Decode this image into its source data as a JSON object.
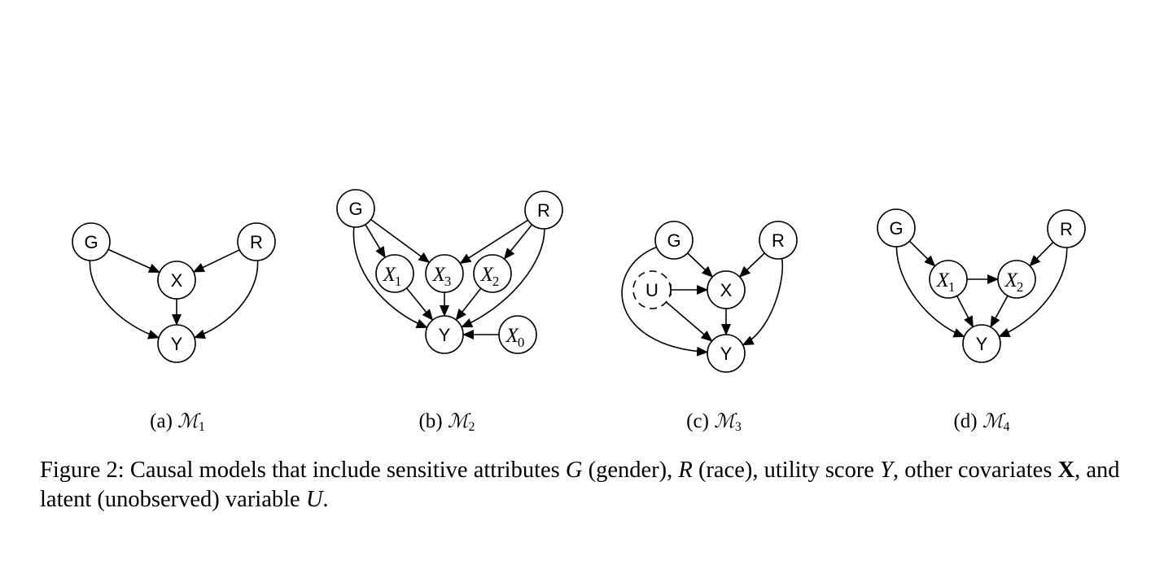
{
  "panels": [
    {
      "caption_prefix": "(a) ",
      "model_symbol": "ℳ",
      "model_index": "1",
      "nodes": [
        {
          "id": "G",
          "label": "G",
          "style": "solid",
          "font": "sans"
        },
        {
          "id": "R",
          "label": "R",
          "style": "solid",
          "font": "sans"
        },
        {
          "id": "X",
          "label": "X",
          "style": "solid",
          "font": "sans"
        },
        {
          "id": "Y",
          "label": "Y",
          "style": "solid",
          "font": "sans"
        }
      ],
      "edges": [
        {
          "from": "G",
          "to": "X",
          "head": "arrow"
        },
        {
          "from": "R",
          "to": "X",
          "head": "arrow"
        },
        {
          "from": "X",
          "to": "Y",
          "head": "arrow"
        },
        {
          "from": "G",
          "to": "Y",
          "head": "arrow"
        },
        {
          "from": "R",
          "to": "Y",
          "head": "arrow"
        }
      ]
    },
    {
      "caption_prefix": "(b) ",
      "model_symbol": "ℳ",
      "model_index": "2",
      "nodes": [
        {
          "id": "G",
          "label": "G",
          "style": "solid",
          "font": "sans"
        },
        {
          "id": "R",
          "label": "R",
          "style": "solid",
          "font": "sans"
        },
        {
          "id": "X1",
          "label": "X",
          "sub": "1",
          "style": "solid",
          "font": "math"
        },
        {
          "id": "X3",
          "label": "X",
          "sub": "3",
          "style": "solid",
          "font": "math"
        },
        {
          "id": "X2",
          "label": "X",
          "sub": "2",
          "style": "solid",
          "font": "math"
        },
        {
          "id": "Y",
          "label": "Y",
          "style": "solid",
          "font": "sans"
        },
        {
          "id": "X0",
          "label": "X",
          "sub": "0",
          "style": "solid",
          "font": "math"
        }
      ],
      "edges": [
        {
          "from": "G",
          "to": "X1",
          "head": "arrow"
        },
        {
          "from": "G",
          "to": "X3",
          "head": "arrow"
        },
        {
          "from": "R",
          "to": "X3",
          "head": "arrow"
        },
        {
          "from": "R",
          "to": "X2",
          "head": "arrow"
        },
        {
          "from": "X1",
          "to": "Y",
          "head": "arrow"
        },
        {
          "from": "X3",
          "to": "Y",
          "head": "arrow"
        },
        {
          "from": "X2",
          "to": "Y",
          "head": "arrow"
        },
        {
          "from": "G",
          "to": "Y",
          "head": "arrow"
        },
        {
          "from": "R",
          "to": "Y",
          "head": "arrow"
        },
        {
          "from": "X0",
          "to": "Y",
          "head": "arrow"
        }
      ]
    },
    {
      "caption_prefix": "(c) ",
      "model_symbol": "ℳ",
      "model_index": "3",
      "nodes": [
        {
          "id": "G",
          "label": "G",
          "style": "solid",
          "font": "sans"
        },
        {
          "id": "R",
          "label": "R",
          "style": "solid",
          "font": "sans"
        },
        {
          "id": "U",
          "label": "U",
          "style": "dashed",
          "font": "sans"
        },
        {
          "id": "X",
          "label": "X",
          "style": "solid",
          "font": "sans"
        },
        {
          "id": "Y",
          "label": "Y",
          "style": "solid",
          "font": "sans"
        }
      ],
      "edges": [
        {
          "from": "G",
          "to": "X",
          "head": "arrow"
        },
        {
          "from": "R",
          "to": "X",
          "head": "arrow"
        },
        {
          "from": "U",
          "to": "X",
          "head": "arrow",
          "tail": "bar"
        },
        {
          "from": "U",
          "to": "Y",
          "head": "arrow"
        },
        {
          "from": "X",
          "to": "Y",
          "head": "arrow"
        },
        {
          "from": "G",
          "to": "Y",
          "head": "arrow"
        },
        {
          "from": "R",
          "to": "Y",
          "head": "arrow"
        }
      ]
    },
    {
      "caption_prefix": "(d) ",
      "model_symbol": "ℳ",
      "model_index": "4",
      "nodes": [
        {
          "id": "G",
          "label": "G",
          "style": "solid",
          "font": "sans"
        },
        {
          "id": "R",
          "label": "R",
          "style": "solid",
          "font": "sans"
        },
        {
          "id": "X1",
          "label": "X",
          "sub": "1",
          "style": "solid",
          "font": "math"
        },
        {
          "id": "X2",
          "label": "X",
          "sub": "2",
          "style": "solid",
          "font": "math"
        },
        {
          "id": "Y",
          "label": "Y",
          "style": "solid",
          "font": "sans"
        }
      ],
      "edges": [
        {
          "from": "G",
          "to": "X1",
          "head": "arrow"
        },
        {
          "from": "R",
          "to": "X2",
          "head": "arrow"
        },
        {
          "from": "X1",
          "to": "X2",
          "head": "arrow"
        },
        {
          "from": "X1",
          "to": "Y",
          "head": "arrow"
        },
        {
          "from": "X2",
          "to": "Y",
          "head": "arrow"
        },
        {
          "from": "G",
          "to": "Y",
          "head": "arrow"
        },
        {
          "from": "R",
          "to": "Y",
          "head": "arrow"
        }
      ]
    }
  ],
  "caption": {
    "p1": "Figure 2: Causal models that include sensitive attributes ",
    "G": "G",
    "p2": " (gender), ",
    "R": "R",
    "p3": " (race), utility score ",
    "Y": "Y",
    "p4": ", other covariates ",
    "X": "X",
    "p5": ", and latent (unobserved) variable ",
    "U": "U",
    "p6": "."
  }
}
